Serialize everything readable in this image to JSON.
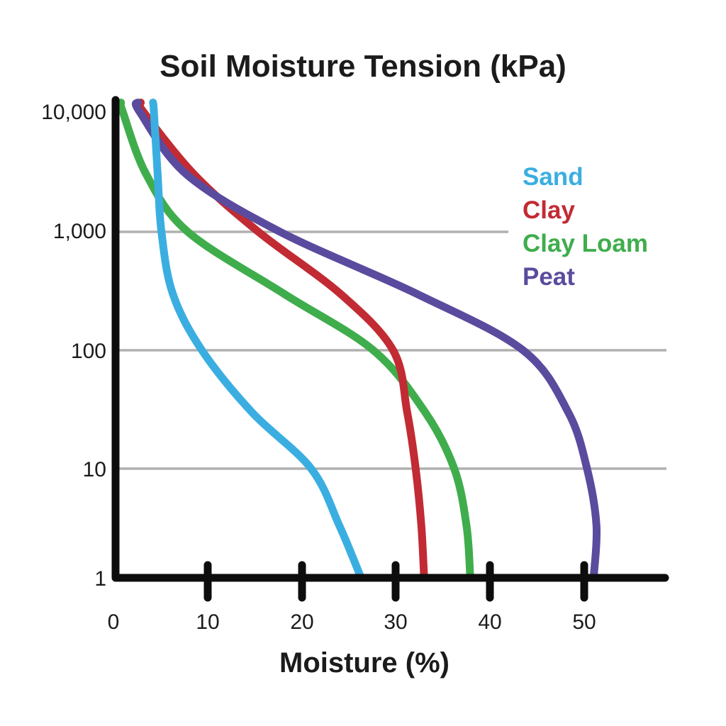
{
  "chart_data": {
    "type": "line",
    "title": "Soil Moisture Tension (kPa)",
    "xlabel": "Moisture (%)",
    "x_axis": {
      "min": 0,
      "max": 58.5,
      "ticks": [
        "0",
        "10",
        "20",
        "30",
        "40",
        "50"
      ]
    },
    "y_axis": {
      "scale": "log",
      "unit": "kPa",
      "ticks": [
        1,
        10,
        100,
        1000,
        10000
      ],
      "tick_labels": [
        "1",
        "10",
        "100",
        "1,000",
        "10,000"
      ],
      "gridlines_at": [
        10,
        100,
        1000
      ]
    },
    "legend": {
      "position": "right-inside",
      "order": [
        "Sand",
        "Clay",
        "Clay Loam",
        "Peat"
      ]
    },
    "series": [
      {
        "name": "Sand",
        "color": "#3baee1",
        "z": 4,
        "points": [
          [
            4.2,
            12000
          ],
          [
            4.3,
            10000
          ],
          [
            4.7,
            3000
          ],
          [
            5.1,
            1000
          ],
          [
            6.3,
            300
          ],
          [
            9.4,
            100
          ],
          [
            14.7,
            30
          ],
          [
            21.0,
            10
          ],
          [
            24.0,
            3
          ],
          [
            26.3,
            1
          ]
        ]
      },
      {
        "name": "Clay",
        "color": "#c22b33",
        "z": 2,
        "points": [
          [
            2.9,
            12000
          ],
          [
            3.2,
            10000
          ],
          [
            8.6,
            3000
          ],
          [
            15.4,
            1000
          ],
          [
            24.1,
            300
          ],
          [
            29.7,
            100
          ],
          [
            31.2,
            30
          ],
          [
            32.1,
            10
          ],
          [
            32.7,
            3
          ],
          [
            33.0,
            1
          ]
        ]
      },
      {
        "name": "Clay Loam",
        "color": "#3fad4c",
        "z": 1,
        "points": [
          [
            0.8,
            12000
          ],
          [
            1.0,
            10000
          ],
          [
            3.5,
            3000
          ],
          [
            7.9,
            1000
          ],
          [
            18.1,
            300
          ],
          [
            27.6,
            100
          ],
          [
            33.1,
            30
          ],
          [
            36.2,
            10
          ],
          [
            37.5,
            3
          ],
          [
            37.9,
            1
          ]
        ]
      },
      {
        "name": "Peat",
        "color": "#5b4b9e",
        "z": 3,
        "points": [
          [
            2.6,
            12000
          ],
          [
            2.8,
            10000
          ],
          [
            7.8,
            3000
          ],
          [
            17.7,
            1000
          ],
          [
            32.2,
            300
          ],
          [
            43.5,
            100
          ],
          [
            48.3,
            30
          ],
          [
            50.3,
            10
          ],
          [
            51.3,
            3
          ],
          [
            51.0,
            1
          ]
        ]
      }
    ]
  }
}
